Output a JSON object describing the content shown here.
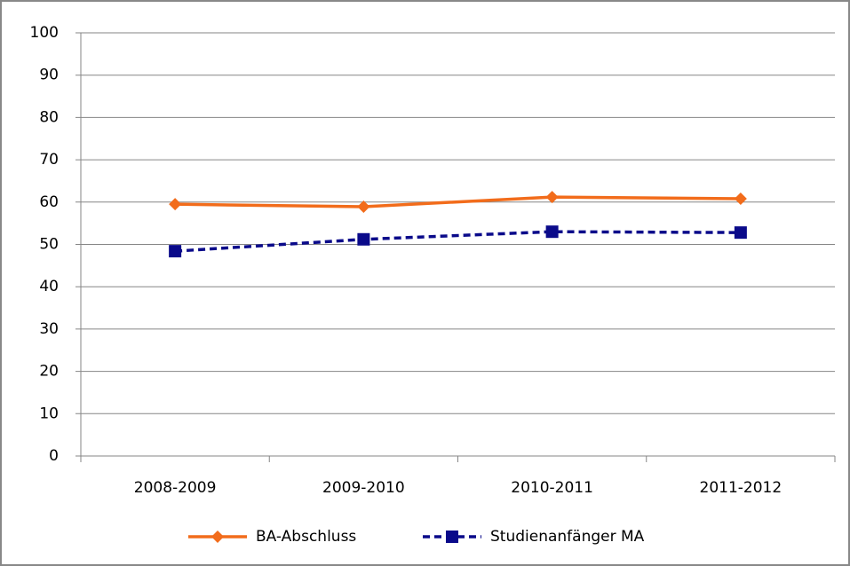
{
  "chart_data": {
    "type": "line",
    "categories": [
      "2008-2009",
      "2009-2010",
      "2010-2011",
      "2011-2012"
    ],
    "series": [
      {
        "name": "BA-Abschluss",
        "color": "#f26c1b",
        "marker": "diamond",
        "dash": "solid",
        "values": [
          59.5,
          58.9,
          61.2,
          60.8
        ]
      },
      {
        "name": "Studienanfänger MA",
        "color": "#0a0a8a",
        "marker": "square",
        "dash": "dashed",
        "values": [
          48.4,
          51.2,
          53.0,
          52.8
        ]
      }
    ],
    "ylim": [
      0,
      100
    ],
    "yticks": [
      0,
      10,
      20,
      30,
      40,
      50,
      60,
      70,
      80,
      90,
      100
    ],
    "grid": true,
    "legend": "bottom"
  }
}
